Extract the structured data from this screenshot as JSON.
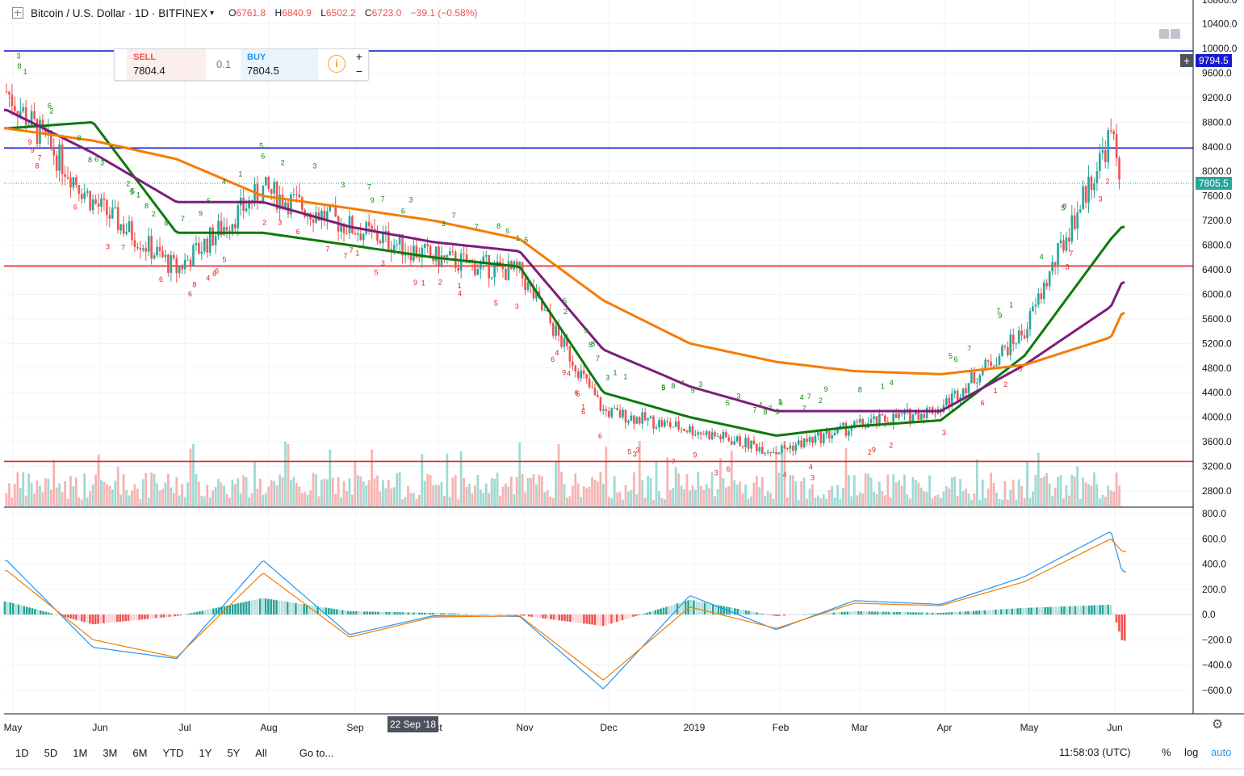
{
  "header": {
    "symbol": "Bitcoin / U.S. Dollar · 1D · BITFINEX",
    "open_k": "O",
    "open_v": "6761.8",
    "high_k": "H",
    "high_v": "6840.9",
    "low_k": "L",
    "low_v": "6502.2",
    "close_k": "C",
    "close_v": "6723.0",
    "change": "−39.1 (−0.58%)"
  },
  "trade": {
    "sell_label": "SELL",
    "sell_price": "7804.4",
    "qty": "0.1",
    "buy_label": "BUY",
    "buy_price": "7804.5",
    "info_icon": "i",
    "plus": "+",
    "minus": "−"
  },
  "colors": {
    "up": "#26a69a",
    "down": "#ef5350",
    "ma_fast": "#0b7a0b",
    "ma_mid": "#7b1e7a",
    "ma_slow": "#f57c00",
    "hline_blue": "#1a1acd",
    "hline_red": "#e52222",
    "macd": "#2196f3",
    "signal": "#f57c00"
  },
  "price_axis": {
    "ticks": [
      "10400.0",
      "10000.0",
      "9600.0",
      "9200.0",
      "8800.0",
      "8400.0",
      "8000.0",
      "7600.0",
      "7200.0",
      "6800.0",
      "6400.0",
      "6000.0",
      "5600.0",
      "5200.0",
      "4800.0",
      "4400.0",
      "4000.0",
      "3600.0",
      "3200.0",
      "2800.0"
    ],
    "badge_top": "9794.5",
    "badge_last": "7805.5",
    "top_partial": "10800.0"
  },
  "macd_axis": {
    "ticks": [
      "800.0",
      "600.0",
      "400.0",
      "200.0",
      "0.0",
      "−200.0",
      "−400.0",
      "−600.0"
    ]
  },
  "time_axis": {
    "labels": [
      "May",
      "Jun",
      "Jul",
      "Aug",
      "Sep",
      "ct",
      "Nov",
      "Dec",
      "2019",
      "Feb",
      "Mar",
      "Apr",
      "May",
      "Jun"
    ],
    "tooltip": "22 Sep '18"
  },
  "bottom_bar": {
    "ranges": [
      "1D",
      "5D",
      "1M",
      "3M",
      "6M",
      "YTD",
      "1Y",
      "5Y",
      "All"
    ],
    "goto": "Go to...",
    "time": "11:58:03 (UTC)",
    "pct": "%",
    "log": "log",
    "auto": "auto"
  },
  "chart_data": {
    "type": "line",
    "title": "Bitcoin / U.S. Dollar · 1D · BITFINEX",
    "x": [
      "2018-05-01",
      "2018-06-01",
      "2018-07-01",
      "2018-08-01",
      "2018-09-01",
      "2018-10-01",
      "2018-11-01",
      "2018-12-01",
      "2019-01-01",
      "2019-02-01",
      "2019-03-01",
      "2019-04-01",
      "2019-05-01",
      "2019-06-01",
      "2019-06-05"
    ],
    "series": [
      {
        "name": "",
        "values": [
          9300,
          7500,
          6400,
          7700,
          7100,
          6600,
          6350,
          4100,
          3800,
          3450,
          3850,
          4150,
          5400,
          8600,
          7805
        ]
      },
      {
        "name": "",
        "values": [
          8700,
          8800,
          7000,
          7000,
          6800,
          6600,
          6450,
          4400,
          4000,
          3700,
          3850,
          3950,
          5000,
          6900,
          7100
        ]
      },
      {
        "name": "",
        "values": [
          9000,
          8300,
          7500,
          7500,
          7100,
          6850,
          6700,
          5100,
          4500,
          4100,
          4100,
          4100,
          4850,
          5800,
          6200
        ]
      },
      {
        "name": "",
        "values": [
          8700,
          8500,
          8200,
          7600,
          7400,
          7200,
          6900,
          5900,
          5200,
          4900,
          4750,
          4700,
          4850,
          5300,
          5700
        ]
      }
    ],
    "hlines": [
      9960,
      8380,
      6460,
      3280
    ],
    "ylim": [
      2500,
      10900
    ],
    "macd": {
      "macd": [
        430,
        -260,
        -350,
        430,
        -160,
        -10,
        -15,
        -590,
        150,
        -120,
        110,
        80,
        300,
        660,
        340
      ],
      "signal": [
        350,
        -200,
        -340,
        330,
        -180,
        -20,
        -10,
        -520,
        60,
        -110,
        90,
        70,
        260,
        600,
        500
      ],
      "ylim": [
        -760,
        840
      ]
    }
  }
}
